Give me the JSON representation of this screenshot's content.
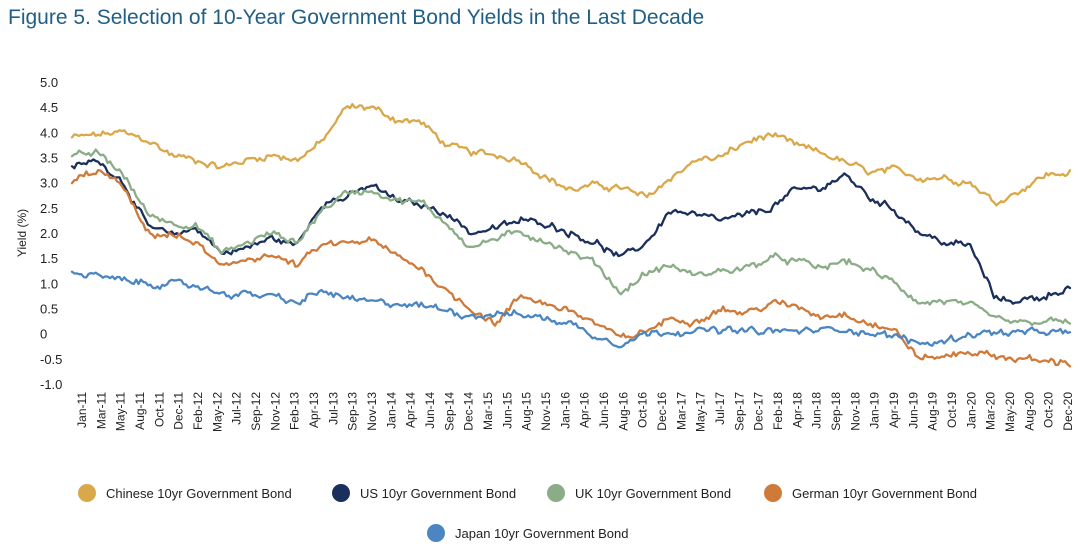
{
  "chart_data": {
    "type": "line",
    "title": "Figure 5. Selection of 10-Year Government Bond Yields in the Last Decade",
    "xlabel": "",
    "ylabel": "Yield (%)",
    "ylim": [
      -1.0,
      5.0
    ],
    "y_ticks": [
      "5.0",
      "4.5",
      "4.0",
      "3.5",
      "3.0",
      "2.5",
      "2.0",
      "1.5",
      "1.0",
      "0.5",
      "0",
      "-0.5",
      "-1.0"
    ],
    "x_ticks": [
      "Jan-11",
      "Mar-11",
      "May-11",
      "Aug-11",
      "Oct-11",
      "Dec-11",
      "Feb-12",
      "May-12",
      "Jul-12",
      "Sep-12",
      "Nov-12",
      "Feb-13",
      "Apr-13",
      "Jul-13",
      "Sep-13",
      "Nov-13",
      "Jan-14",
      "Apr-14",
      "Jun-14",
      "Sep-14",
      "Dec-14",
      "Mar-15",
      "Jun-15",
      "Aug-15",
      "Nov-15",
      "Jan-16",
      "Apr-16",
      "Jun-16",
      "Aug-16",
      "Oct-16",
      "Dec-16",
      "Mar-17",
      "May-17",
      "Jul-17",
      "Sep-17",
      "Dec-17",
      "Feb-18",
      "Apr-18",
      "Jun-18",
      "Sep-18",
      "Nov-18",
      "Jan-19",
      "Apr-19",
      "Jun-19",
      "Aug-19",
      "Oct-19",
      "Jan-20",
      "Mar-20",
      "May-20",
      "Aug-20",
      "Oct-20",
      "Dec-20"
    ],
    "x_range": [
      2011.0,
      2021.0
    ],
    "x": [
      2011.0,
      2011.25,
      2011.5,
      2011.75,
      2012.0,
      2012.25,
      2012.5,
      2012.75,
      2013.0,
      2013.25,
      2013.5,
      2013.75,
      2014.0,
      2014.25,
      2014.5,
      2014.75,
      2015.0,
      2015.25,
      2015.5,
      2015.75,
      2016.0,
      2016.25,
      2016.5,
      2016.75,
      2017.0,
      2017.25,
      2017.5,
      2017.75,
      2018.0,
      2018.25,
      2018.5,
      2018.75,
      2019.0,
      2019.25,
      2019.5,
      2019.75,
      2020.0,
      2020.25,
      2020.5,
      2020.75,
      2021.0
    ],
    "series": [
      {
        "name": "Chinese 10yr Government Bond",
        "color": "#d9a84a",
        "values": [
          3.9,
          3.95,
          4.0,
          3.85,
          3.55,
          3.45,
          3.3,
          3.45,
          3.55,
          3.45,
          3.8,
          4.5,
          4.5,
          4.25,
          4.2,
          3.75,
          3.6,
          3.55,
          3.45,
          3.1,
          2.85,
          2.95,
          2.9,
          2.7,
          3.1,
          3.45,
          3.5,
          3.8,
          3.95,
          3.75,
          3.6,
          3.4,
          3.2,
          3.25,
          3.1,
          3.1,
          3.0,
          2.6,
          2.85,
          3.15,
          3.2
        ]
      },
      {
        "name": "US 10yr Government Bond",
        "color": "#1a2f5c",
        "values": [
          3.3,
          3.45,
          3.05,
          2.15,
          1.95,
          2.1,
          1.6,
          1.7,
          1.9,
          1.75,
          2.6,
          2.7,
          2.95,
          2.65,
          2.55,
          2.4,
          2.0,
          2.1,
          2.25,
          2.2,
          2.0,
          1.8,
          1.5,
          1.8,
          2.45,
          2.35,
          2.25,
          2.35,
          2.5,
          2.85,
          2.9,
          3.15,
          2.7,
          2.45,
          2.0,
          1.8,
          1.75,
          0.7,
          0.65,
          0.75,
          0.92
        ]
      },
      {
        "name": "UK 10yr Government Bond",
        "color": "#8aad87",
        "values": [
          3.5,
          3.6,
          3.2,
          2.4,
          2.2,
          2.15,
          1.6,
          1.8,
          2.0,
          1.8,
          2.45,
          2.8,
          2.85,
          2.65,
          2.6,
          2.2,
          1.7,
          1.9,
          2.0,
          1.85,
          1.6,
          1.4,
          0.8,
          1.2,
          1.35,
          1.15,
          1.25,
          1.3,
          1.5,
          1.45,
          1.3,
          1.45,
          1.25,
          1.0,
          0.6,
          0.65,
          0.55,
          0.3,
          0.2,
          0.25,
          0.22
        ]
      },
      {
        "name": "German 10yr Government Bond",
        "color": "#d07a3a",
        "values": [
          3.0,
          3.25,
          2.95,
          2.0,
          1.95,
          1.8,
          1.3,
          1.5,
          1.55,
          1.35,
          1.75,
          1.8,
          1.85,
          1.55,
          1.3,
          0.85,
          0.5,
          0.2,
          0.75,
          0.6,
          0.45,
          0.2,
          -0.1,
          0.05,
          0.3,
          0.25,
          0.5,
          0.4,
          0.6,
          0.55,
          0.35,
          0.4,
          0.2,
          0.05,
          -0.5,
          -0.45,
          -0.35,
          -0.45,
          -0.5,
          -0.55,
          -0.57
        ]
      },
      {
        "name": "Japan 10yr Government Bond",
        "color": "#4b86c2",
        "values": [
          1.2,
          1.15,
          1.05,
          1.0,
          0.98,
          0.95,
          0.8,
          0.78,
          0.75,
          0.6,
          0.85,
          0.7,
          0.62,
          0.6,
          0.55,
          0.48,
          0.35,
          0.4,
          0.38,
          0.3,
          0.2,
          -0.05,
          -0.2,
          0.0,
          0.05,
          0.05,
          0.07,
          0.05,
          0.05,
          0.05,
          0.07,
          0.1,
          0.0,
          -0.05,
          -0.2,
          -0.15,
          0.0,
          0.02,
          0.02,
          0.03,
          0.02
        ]
      }
    ],
    "legend_position": "bottom"
  }
}
